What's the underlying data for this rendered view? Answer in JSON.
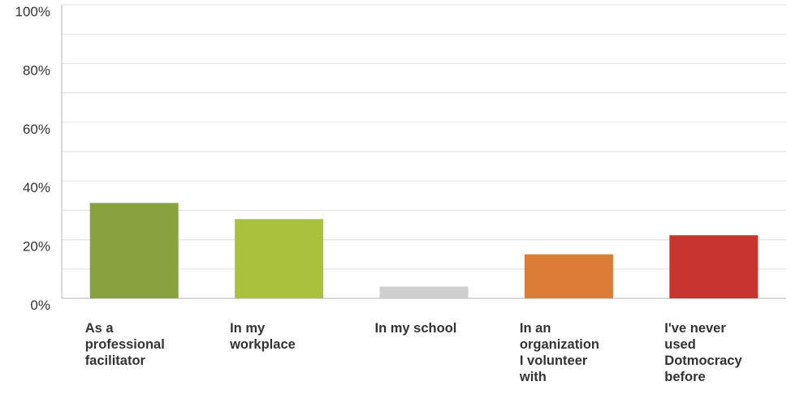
{
  "chart_data": {
    "type": "bar",
    "title": "",
    "xlabel": "",
    "ylabel": "",
    "ylim": [
      0,
      100
    ],
    "y_ticks": [
      "0%",
      "20%",
      "40%",
      "60%",
      "80%",
      "100%"
    ],
    "y_tick_values": [
      0,
      20,
      40,
      60,
      80,
      100
    ],
    "grid": true,
    "categories": [
      [
        "As a",
        "professional",
        "facilitator"
      ],
      [
        "In my",
        "workplace"
      ],
      [
        "In my school"
      ],
      [
        "In an",
        "organization",
        "I volunteer",
        "with"
      ],
      [
        "I've never",
        "used",
        "Dotmocracy",
        "before"
      ]
    ],
    "values": [
      32.5,
      27,
      4,
      15,
      21.5
    ],
    "colors": [
      "#86a33e",
      "#a8c23d",
      "#cfcfcf",
      "#dc7d37",
      "#c8352f"
    ],
    "grid_color": "#e6e6e6",
    "axis_color": "#cccccc",
    "text_color": "#333333"
  }
}
